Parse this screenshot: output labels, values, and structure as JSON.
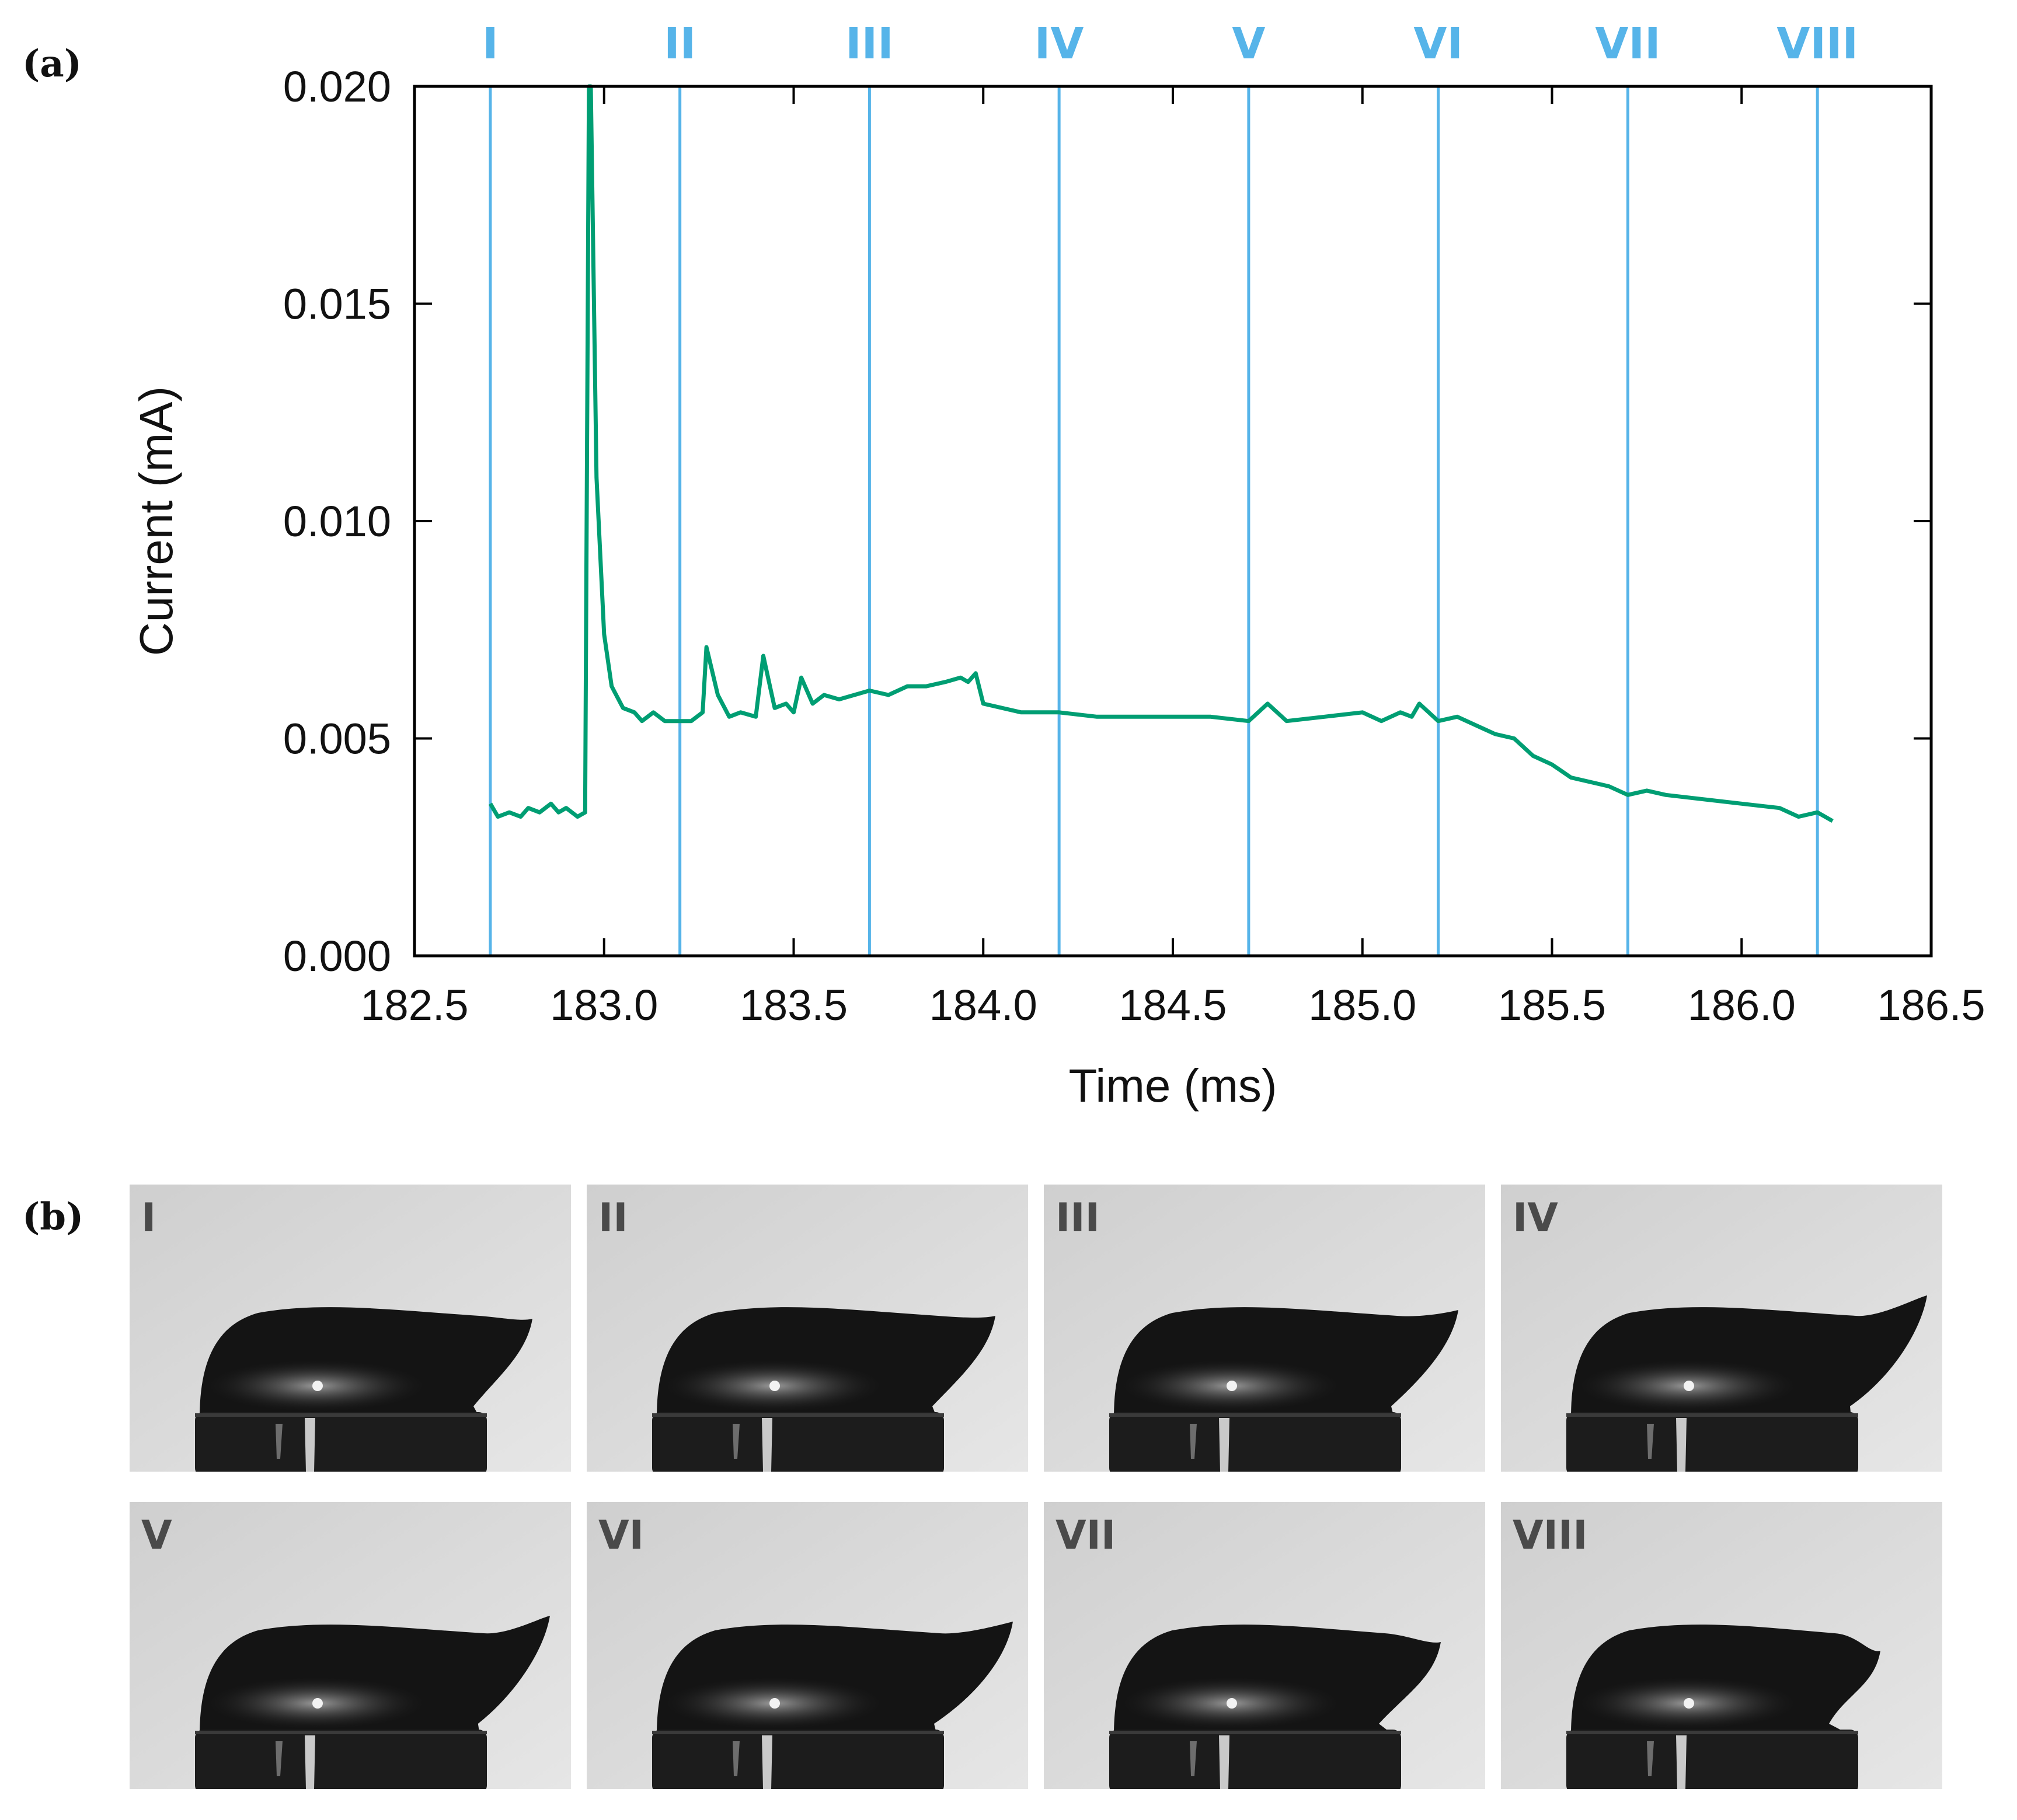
{
  "panels": {
    "a_label": "(a)",
    "b_label": "(b)"
  },
  "colors": {
    "series": "#009e73",
    "markers": "#56b4e9",
    "axis": "#000000",
    "frame_label": "#4a4a4a"
  },
  "chart_data": {
    "type": "line",
    "title": "",
    "xlabel": "Time (ms)",
    "ylabel": "Current (mA)",
    "xlim": [
      182.5,
      186.5
    ],
    "ylim": [
      0.0,
      0.02
    ],
    "xticks": [
      182.5,
      183.0,
      183.5,
      184.0,
      184.5,
      185.0,
      185.5,
      186.0,
      186.5
    ],
    "xtick_labels": [
      "182.5",
      "183.0",
      "183.5",
      "184.0",
      "184.5",
      "185.0",
      "185.5",
      "186.0",
      "186.5"
    ],
    "yticks": [
      0.0,
      0.005,
      0.01,
      0.015,
      0.02
    ],
    "ytick_labels": [
      "0.000",
      "0.005",
      "0.010",
      "0.015",
      "0.020"
    ],
    "grid": false,
    "markers": [
      {
        "label": "I",
        "x": 182.7
      },
      {
        "label": "II",
        "x": 183.2
      },
      {
        "label": "III",
        "x": 183.7
      },
      {
        "label": "IV",
        "x": 184.2
      },
      {
        "label": "V",
        "x": 184.7
      },
      {
        "label": "VI",
        "x": 185.2
      },
      {
        "label": "VII",
        "x": 185.7
      },
      {
        "label": "VIII",
        "x": 186.2
      }
    ],
    "series": [
      {
        "name": "current",
        "x": [
          182.7,
          182.72,
          182.75,
          182.78,
          182.8,
          182.83,
          182.86,
          182.88,
          182.9,
          182.93,
          182.95,
          182.96,
          182.965,
          182.98,
          183.0,
          183.02,
          183.05,
          183.08,
          183.1,
          183.13,
          183.16,
          183.2,
          183.23,
          183.26,
          183.27,
          183.3,
          183.33,
          183.36,
          183.4,
          183.42,
          183.45,
          183.48,
          183.5,
          183.52,
          183.55,
          183.58,
          183.62,
          183.66,
          183.7,
          183.75,
          183.8,
          183.85,
          183.9,
          183.94,
          183.96,
          183.98,
          184.0,
          184.1,
          184.2,
          184.3,
          184.4,
          184.5,
          184.6,
          184.7,
          184.75,
          184.8,
          184.9,
          185.0,
          185.05,
          185.1,
          185.13,
          185.15,
          185.2,
          185.25,
          185.3,
          185.35,
          185.4,
          185.45,
          185.5,
          185.55,
          185.6,
          185.65,
          185.7,
          185.75,
          185.8,
          185.9,
          186.0,
          186.1,
          186.15,
          186.2,
          186.24
        ],
        "y": [
          0.0035,
          0.0032,
          0.0033,
          0.0032,
          0.0034,
          0.0033,
          0.0035,
          0.0033,
          0.0034,
          0.0032,
          0.0033,
          0.02,
          0.02,
          0.011,
          0.0074,
          0.0062,
          0.0057,
          0.0056,
          0.0054,
          0.0056,
          0.0054,
          0.0054,
          0.0054,
          0.0056,
          0.0071,
          0.006,
          0.0055,
          0.0056,
          0.0055,
          0.0069,
          0.0057,
          0.0058,
          0.0056,
          0.0064,
          0.0058,
          0.006,
          0.0059,
          0.006,
          0.0061,
          0.006,
          0.0062,
          0.0062,
          0.0063,
          0.0064,
          0.0063,
          0.0065,
          0.0058,
          0.0056,
          0.0056,
          0.0055,
          0.0055,
          0.0055,
          0.0055,
          0.0054,
          0.0058,
          0.0054,
          0.0055,
          0.0056,
          0.0054,
          0.0056,
          0.0055,
          0.0058,
          0.0054,
          0.0055,
          0.0053,
          0.0051,
          0.005,
          0.0046,
          0.0044,
          0.0041,
          0.004,
          0.0039,
          0.0037,
          0.0038,
          0.0037,
          0.0036,
          0.0035,
          0.0034,
          0.0032,
          0.0033,
          0.0031
        ]
      }
    ]
  },
  "frames": {
    "row1": [
      "I",
      "II",
      "III",
      "IV"
    ],
    "row2": [
      "V",
      "VI",
      "VII",
      "VIII"
    ]
  }
}
